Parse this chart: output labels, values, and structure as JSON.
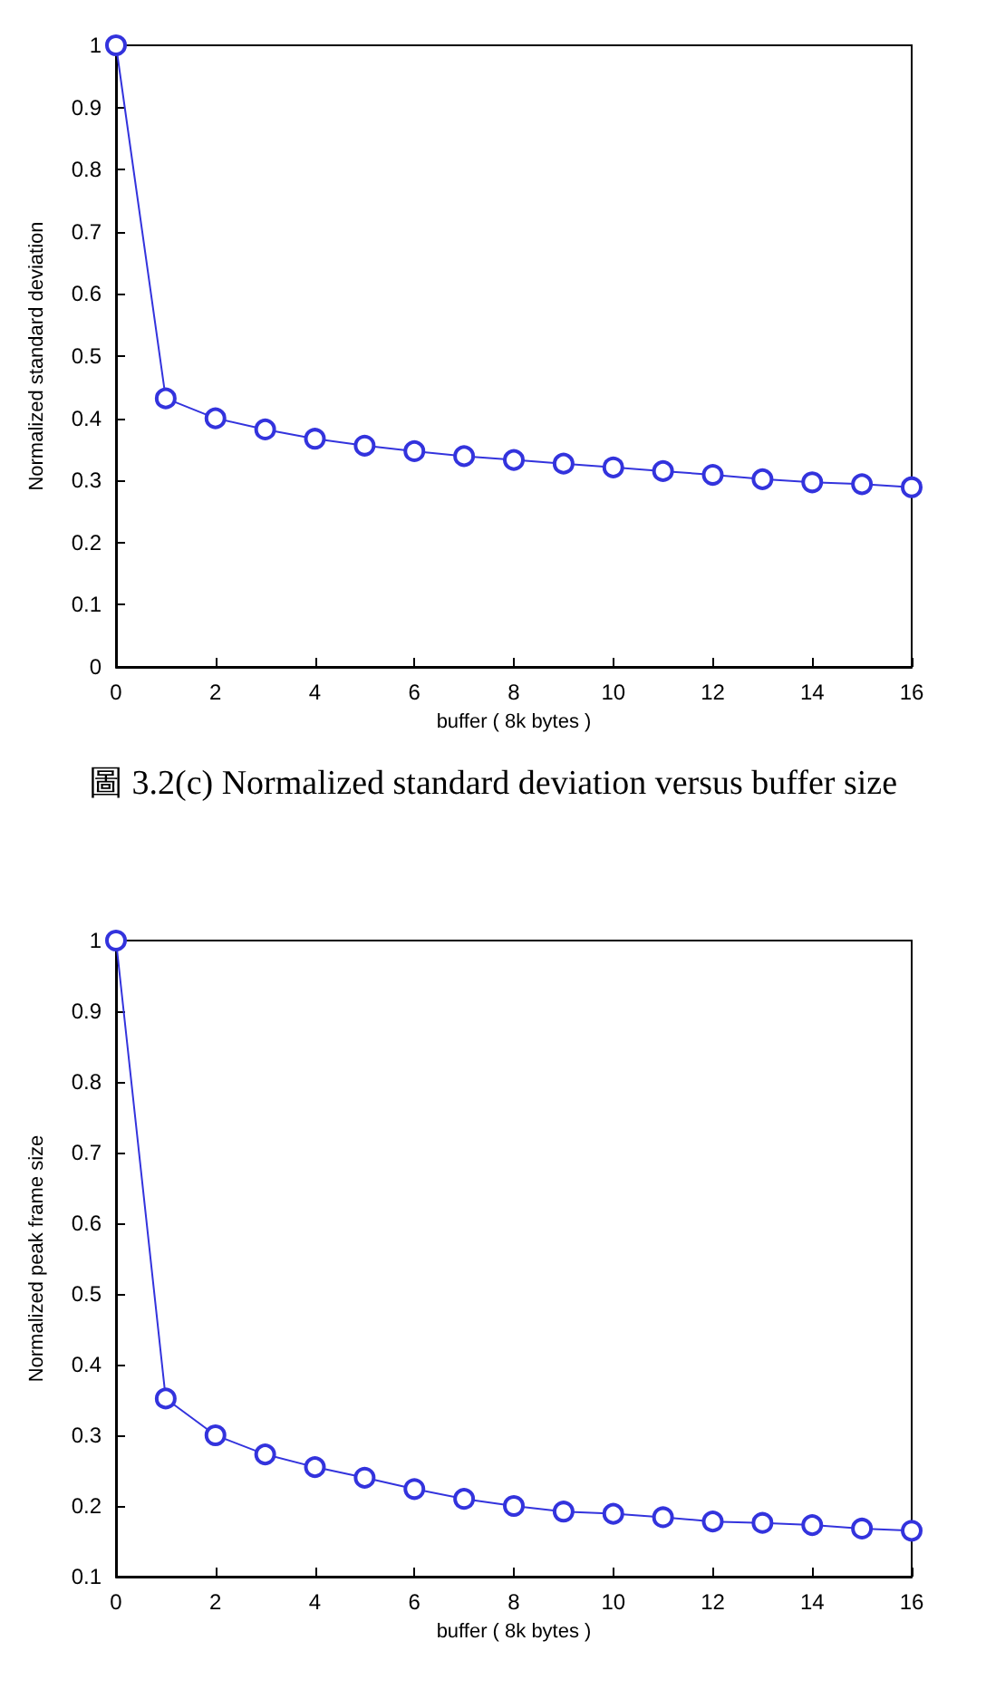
{
  "chart_data": [
    {
      "type": "line",
      "xlabel": "buffer ( 8k bytes )",
      "ylabel": "Normalized standard deviation",
      "annotations": [
        "圖 3.2(c) Normalized standard deviation versus buffer size"
      ],
      "x": [
        0,
        1,
        2,
        3,
        4,
        5,
        6,
        7,
        8,
        9,
        10,
        11,
        12,
        13,
        14,
        15,
        16
      ],
      "series": [
        {
          "color": "#3333dd",
          "values": [
            1,
            0.432,
            0.4,
            0.382,
            0.367,
            0.356,
            0.347,
            0.339,
            0.333,
            0.327,
            0.321,
            0.315,
            0.309,
            0.302,
            0.297,
            0.294,
            0.289
          ]
        }
      ],
      "xlim": [
        0,
        16
      ],
      "xticks": [
        0,
        2,
        4,
        6,
        8,
        10,
        12,
        14,
        16
      ],
      "ylim": [
        0,
        1
      ],
      "yticks": [
        0,
        0.1,
        0.2,
        0.3,
        0.4,
        0.5,
        0.6,
        0.7,
        0.8,
        0.9,
        1
      ],
      "marker": "circle",
      "line_style": "solid",
      "grid": false
    },
    {
      "type": "line",
      "xlabel": "buffer ( 8k bytes )",
      "ylabel": "Normalized peak frame size",
      "x": [
        0,
        1,
        2,
        3,
        4,
        5,
        6,
        7,
        8,
        9,
        10,
        11,
        12,
        13,
        14,
        15,
        16
      ],
      "series": [
        {
          "color": "#3333dd",
          "values": [
            1,
            0.352,
            0.3,
            0.273,
            0.255,
            0.24,
            0.224,
            0.21,
            0.2,
            0.192,
            0.189,
            0.184,
            0.178,
            0.176,
            0.173,
            0.168,
            0.165
          ]
        }
      ],
      "xlim": [
        0,
        16
      ],
      "xticks": [
        0,
        2,
        4,
        6,
        8,
        10,
        12,
        14,
        16
      ],
      "ylim": [
        0.1,
        1
      ],
      "yticks": [
        0.1,
        0.2,
        0.3,
        0.4,
        0.5,
        0.6,
        0.7,
        0.8,
        0.9,
        1
      ],
      "marker": "circle",
      "line_style": "solid",
      "grid": false
    }
  ]
}
